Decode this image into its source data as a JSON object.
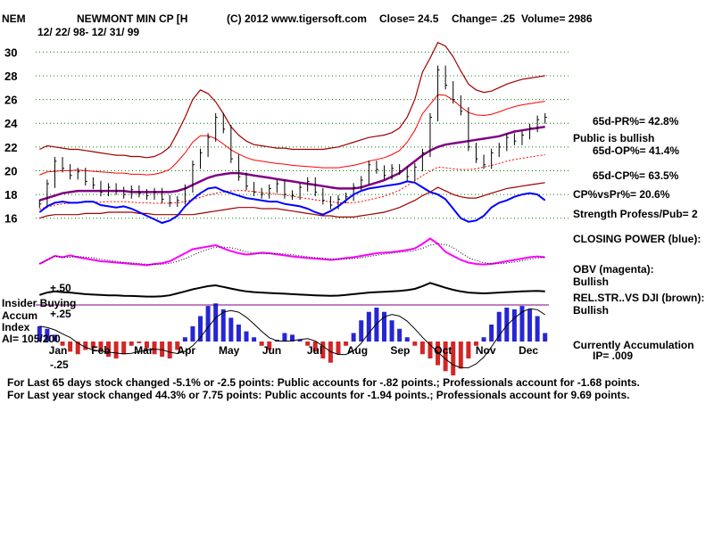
{
  "header": {
    "ticker": "NEM",
    "name": "NEWMONT MIN CP [H",
    "copyright": "(C) 2012 www.tigersoft.com",
    "close": "Close=  24.5",
    "change": "Change= .25",
    "volume": "Volume= 2986",
    "date_range": "12/ 22/ 98-  12/ 31/ 99"
  },
  "right_panel": {
    "pr": "65d-PR%= 42.8%",
    "public": "Public is bullish",
    "op": "65d-OP%= 41.4%",
    "cp": "65d-CP%= 63.5%",
    "cpvspr": "CP%vsPr%=  20.6%",
    "strength": "Strength Profess/Pub= 2",
    "closing_power": "CLOSING POWER (blue):",
    "obv": "OBV (magenta):",
    "obv_status": "Bullish",
    "relstr": "REL.STR..VS DJI (brown):",
    "relstr_status": "Bullish",
    "accum": "Currently Accumulation",
    "ip": "IP=  .009"
  },
  "lower_labels": {
    "plus50": "+.50",
    "insider": "Insider Buying",
    "accum": "Accum",
    "plus25": "+.25",
    "index": "Index",
    "ai": "AI= 105/200",
    "minus25": "-.25"
  },
  "footer": {
    "line1": "For Last 65 days stock changed -5.1% or -2.5 points:  Public accounts for -.82 points.;  Professionals account for -1.68 points.",
    "line2": "For Last year stock changed  44.3% or  7.75 points:  Public accounts for -1.94 points.;  Professionals account for  9.69 points."
  },
  "colors": {
    "price_bar": "#000000",
    "band": "#a00000",
    "bollinger": "#ff0000",
    "moving_avg": "#800080",
    "closing_power": "#0000ff",
    "obv": "#ff00ff",
    "rel_str": "#000000",
    "accum_pos": "#0000cc",
    "accum_neg": "#cc0000",
    "grid": "#008000"
  },
  "chart_data": {
    "type": "line",
    "title": "NEWMONT MIN CP [H",
    "xlabel": "",
    "ylabel": "",
    "ylim": [
      15,
      31
    ],
    "y_ticks": [
      16,
      18,
      20,
      22,
      24,
      26,
      28,
      30
    ],
    "months": [
      "Jan",
      "Feb",
      "Mar",
      "Apr",
      "May",
      "Jun",
      "Jul",
      "Aug",
      "Sep",
      "Oct",
      "Nov",
      "Dec"
    ],
    "price_close": [
      17.2,
      18.9,
      20.8,
      20.2,
      19.6,
      19.9,
      19.1,
      18.8,
      18.2,
      18.6,
      18.3,
      18.0,
      18.4,
      18.1,
      17.9,
      18.2,
      17.6,
      17.3,
      17.5,
      18.5,
      20.5,
      21.5,
      22.8,
      24.5,
      23.5,
      21.0,
      19.5,
      18.7,
      18.2,
      18.0,
      18.5,
      18.9,
      18.0,
      17.9,
      18.6,
      19.1,
      18.2,
      17.5,
      17.1,
      17.6,
      17.8,
      18.6,
      19.2,
      20.5,
      20.1,
      19.6,
      20.2,
      20.0,
      19.5,
      20.3,
      21.5,
      24.5,
      28.5,
      27.2,
      26.0,
      25.0,
      22.0,
      21.0,
      20.5,
      21.5,
      22.0,
      22.8,
      22.5,
      23.0,
      23.6,
      24.3,
      24.5
    ],
    "upper_band": [
      21.8,
      22.1,
      22.0,
      21.9,
      21.8,
      21.8,
      21.7,
      21.6,
      21.5,
      21.4,
      21.3,
      21.3,
      21.2,
      21.2,
      21.1,
      21.2,
      21.5,
      22.0,
      23.2,
      24.5,
      26.0,
      26.8,
      26.5,
      25.8,
      24.8,
      23.7,
      23.0,
      22.5,
      22.2,
      22.1,
      22.0,
      21.9,
      21.9,
      21.8,
      21.8,
      21.8,
      21.8,
      21.8,
      21.9,
      22.0,
      22.2,
      22.4,
      22.6,
      22.8,
      22.9,
      23.0,
      23.2,
      23.6,
      24.5,
      26.0,
      28.3,
      29.5,
      30.8,
      30.5,
      29.6,
      28.4,
      27.3,
      26.8,
      26.6,
      26.7,
      27.0,
      27.3,
      27.5,
      27.7,
      27.8,
      27.9,
      28.0
    ],
    "lower_band": [
      16.0,
      16.2,
      16.3,
      16.3,
      16.3,
      16.3,
      16.4,
      16.4,
      16.4,
      16.5,
      16.5,
      16.5,
      16.5,
      16.4,
      16.4,
      16.3,
      16.3,
      16.3,
      16.3,
      16.3,
      16.3,
      16.4,
      16.5,
      16.6,
      16.7,
      16.8,
      16.9,
      16.9,
      16.9,
      16.8,
      16.8,
      16.8,
      16.7,
      16.6,
      16.5,
      16.4,
      16.3,
      16.2,
      16.2,
      16.1,
      16.1,
      16.1,
      16.2,
      16.3,
      16.4,
      16.5,
      16.7,
      16.9,
      17.2,
      17.5,
      17.9,
      18.2,
      18.6,
      18.3,
      18.0,
      17.8,
      17.7,
      17.7,
      17.9,
      18.1,
      18.3,
      18.5,
      18.6,
      18.7,
      18.8,
      18.9,
      19.0
    ],
    "moving_avg": [
      17.5,
      17.7,
      17.9,
      18.1,
      18.2,
      18.3,
      18.3,
      18.3,
      18.3,
      18.3,
      18.3,
      18.3,
      18.2,
      18.2,
      18.2,
      18.2,
      18.2,
      18.2,
      18.3,
      18.5,
      18.8,
      19.1,
      19.4,
      19.6,
      19.7,
      19.8,
      19.8,
      19.7,
      19.6,
      19.5,
      19.4,
      19.3,
      19.2,
      19.1,
      19.0,
      18.9,
      18.8,
      18.7,
      18.6,
      18.5,
      18.5,
      18.5,
      18.6,
      18.8,
      19.0,
      19.2,
      19.5,
      19.8,
      20.3,
      20.8,
      21.3,
      21.7,
      22.0,
      22.2,
      22.3,
      22.4,
      22.5,
      22.6,
      22.7,
      22.8,
      22.9,
      23.1,
      23.3,
      23.4,
      23.5,
      23.6,
      23.7
    ],
    "closing_power": [
      16.5,
      17.0,
      17.3,
      17.4,
      17.3,
      17.3,
      17.4,
      17.4,
      17.1,
      17.0,
      16.9,
      17.0,
      16.8,
      16.5,
      16.2,
      15.9,
      15.6,
      15.8,
      16.2,
      17.0,
      17.6,
      18.1,
      18.5,
      18.6,
      18.3,
      18.1,
      17.9,
      17.7,
      17.6,
      17.5,
      17.4,
      17.4,
      17.2,
      17.1,
      17.0,
      16.8,
      16.5,
      16.3,
      16.6,
      17.0,
      17.5,
      18.0,
      18.3,
      18.5,
      18.6,
      18.7,
      18.8,
      18.9,
      19.1,
      19.0,
      18.6,
      18.2,
      18.0,
      17.6,
      16.8,
      16.0,
      15.7,
      15.8,
      16.2,
      16.9,
      17.3,
      17.5,
      17.8,
      18.0,
      18.1,
      18.0,
      17.5
    ],
    "obv": [
      0.3,
      0.45,
      0.6,
      0.55,
      0.62,
      0.55,
      0.5,
      0.45,
      0.4,
      0.38,
      0.35,
      0.33,
      0.3,
      0.28,
      0.25,
      0.3,
      0.33,
      0.4,
      0.55,
      0.7,
      0.85,
      0.9,
      0.95,
      1.0,
      0.88,
      0.78,
      0.7,
      0.65,
      0.68,
      0.72,
      0.7,
      0.66,
      0.62,
      0.58,
      0.55,
      0.52,
      0.5,
      0.48,
      0.45,
      0.48,
      0.52,
      0.55,
      0.6,
      0.65,
      0.7,
      0.72,
      0.74,
      0.78,
      0.82,
      0.88,
      1.05,
      1.25,
      1.05,
      0.75,
      0.6,
      0.45,
      0.35,
      0.3,
      0.28,
      0.3,
      0.35,
      0.4,
      0.45,
      0.5,
      0.55,
      0.58,
      0.55
    ],
    "rel_str": [
      0.4,
      0.55,
      0.62,
      0.58,
      0.55,
      0.5,
      0.45,
      0.42,
      0.4,
      0.38,
      0.37,
      0.35,
      0.34,
      0.32,
      0.3,
      0.3,
      0.32,
      0.38,
      0.5,
      0.62,
      0.75,
      0.85,
      0.95,
      1.0,
      0.9,
      0.8,
      0.7,
      0.62,
      0.58,
      0.55,
      0.52,
      0.5,
      0.48,
      0.45,
      0.42,
      0.4,
      0.38,
      0.36,
      0.35,
      0.36,
      0.4,
      0.45,
      0.5,
      0.55,
      0.58,
      0.6,
      0.62,
      0.65,
      0.7,
      0.78,
      0.95,
      1.15,
      1.0,
      0.85,
      0.72,
      0.62,
      0.55,
      0.52,
      0.5,
      0.52,
      0.55,
      0.58,
      0.6,
      0.62,
      0.64,
      0.65,
      0.62
    ],
    "accum_index": [
      0.18,
      0.15,
      0.08,
      -0.05,
      -0.12,
      -0.15,
      -0.1,
      -0.08,
      -0.12,
      -0.18,
      -0.2,
      -0.15,
      -0.05,
      -0.02,
      -0.08,
      -0.15,
      -0.18,
      -0.2,
      -0.1,
      0.05,
      0.18,
      0.3,
      0.42,
      0.45,
      0.38,
      0.28,
      0.2,
      0.12,
      0.05,
      -0.05,
      -0.1,
      0.02,
      0.1,
      0.08,
      0.02,
      -0.05,
      -0.12,
      -0.2,
      -0.25,
      -0.15,
      -0.05,
      0.1,
      0.25,
      0.35,
      0.4,
      0.35,
      0.25,
      0.15,
      0.05,
      -0.05,
      -0.15,
      -0.2,
      -0.28,
      -0.35,
      -0.4,
      -0.32,
      -0.2,
      -0.05,
      0.05,
      0.2,
      0.35,
      0.4,
      0.38,
      0.42,
      0.38,
      0.3,
      0.1
    ],
    "accum_ylim": [
      -0.5,
      0.5
    ]
  }
}
